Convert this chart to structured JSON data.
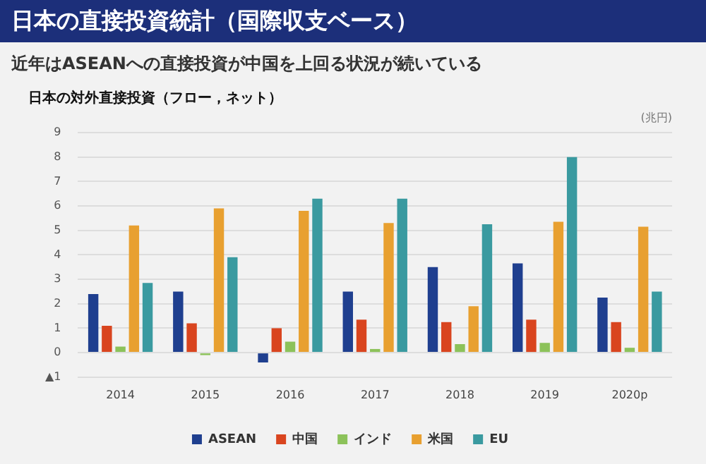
{
  "chart_data": {
    "type": "bar",
    "title": "日本の直接投資統計（国際収支ベース）",
    "subtitle": "近年はASEANへの直接投資が中国を上回る状況が続いている",
    "annotations": [
      "日本の対外直接投資（フロー，ネット）"
    ],
    "ylabel": "(兆円)",
    "categories": [
      "2014",
      "2015",
      "2016",
      "2017",
      "2018",
      "2019",
      "2020p"
    ],
    "series": [
      {
        "name": "ASEAN",
        "color": "#1f3f8f",
        "values": [
          2.4,
          2.5,
          -0.4,
          2.5,
          3.5,
          3.65,
          2.25
        ]
      },
      {
        "name": "中国",
        "color": "#d9451f",
        "values": [
          1.1,
          1.2,
          1.0,
          1.35,
          1.25,
          1.35,
          1.25
        ]
      },
      {
        "name": "インド",
        "color": "#8cc25a",
        "values": [
          0.25,
          -0.1,
          0.45,
          0.15,
          0.35,
          0.4,
          0.2
        ]
      },
      {
        "name": "米国",
        "color": "#e8a030",
        "values": [
          5.2,
          5.9,
          5.8,
          5.3,
          1.9,
          5.35,
          5.15
        ]
      },
      {
        "name": "EU",
        "color": "#3a9aa0",
        "values": [
          2.85,
          3.9,
          6.3,
          6.3,
          5.25,
          8.0,
          2.5
        ]
      }
    ],
    "ylim": [
      -1,
      9
    ],
    "yticks": [
      {
        "value": -1,
        "label": "▲1"
      },
      0,
      1,
      2,
      3,
      4,
      5,
      6,
      7,
      8,
      9
    ],
    "grid": "y",
    "legend": "bottom"
  }
}
